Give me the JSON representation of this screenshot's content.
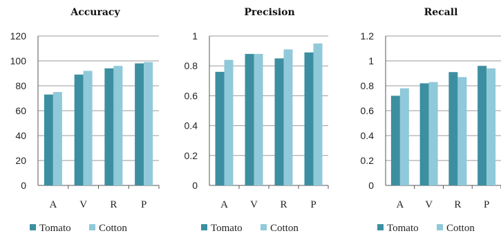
{
  "colors": {
    "Tomato": "#3c8fa1",
    "Cotton": "#90c9d9"
  },
  "chart_data": [
    {
      "type": "bar",
      "title": "Accuracy",
      "categories": [
        "A",
        "V",
        "R",
        "P"
      ],
      "ylim": [
        0,
        120
      ],
      "yticks": [
        "0",
        "20",
        "40",
        "60",
        "80",
        "100",
        "120"
      ],
      "legend": "bottom",
      "series": [
        {
          "name": "Tomato",
          "values": [
            73,
            89,
            94,
            98
          ]
        },
        {
          "name": "Cotton",
          "values": [
            75,
            92,
            96,
            99
          ]
        }
      ]
    },
    {
      "type": "bar",
      "title": "Precision",
      "categories": [
        "A",
        "V",
        "R",
        "P"
      ],
      "ylim": [
        0,
        1
      ],
      "yticks": [
        "0",
        "0.2",
        "0.4",
        "0.6",
        "0.8",
        "1"
      ],
      "legend": "bottom",
      "series": [
        {
          "name": "Tomato",
          "values": [
            0.76,
            0.88,
            0.85,
            0.89
          ]
        },
        {
          "name": "Cotton",
          "values": [
            0.84,
            0.88,
            0.91,
            0.95
          ]
        }
      ]
    },
    {
      "type": "bar",
      "title": "Recall",
      "categories": [
        "A",
        "V",
        "R",
        "P"
      ],
      "ylim": [
        0,
        1.2
      ],
      "yticks": [
        "0",
        "0.2",
        "0.4",
        "0.6",
        "0.8",
        "1",
        "1.2"
      ],
      "legend": "bottom",
      "series": [
        {
          "name": "Tomato",
          "values": [
            0.72,
            0.82,
            0.91,
            0.96
          ]
        },
        {
          "name": "Cotton",
          "values": [
            0.78,
            0.83,
            0.87,
            0.94
          ]
        }
      ]
    }
  ]
}
